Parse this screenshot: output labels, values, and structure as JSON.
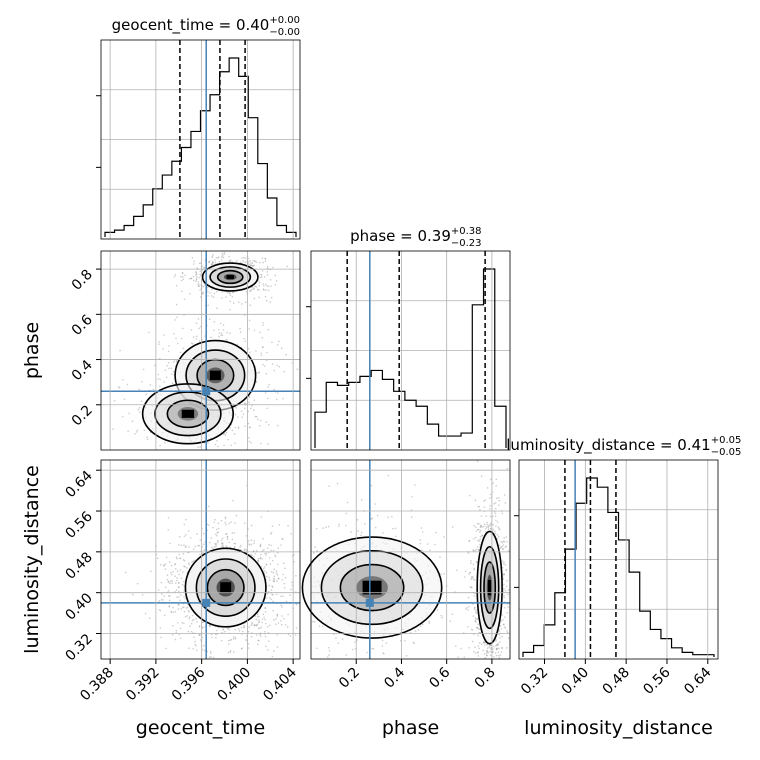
{
  "chart_data": {
    "type": "corner",
    "grid": true,
    "truth_color": "#4682b4",
    "params": [
      {
        "name": "geocent_time",
        "axis_label": "geocent_time",
        "title_main": "geocent_time = 0.40",
        "title_plus": "+0.00",
        "title_minus": "−0.00",
        "range": [
          0.3872,
          0.4046
        ],
        "ticks": [
          "0.388",
          "0.392",
          "0.396",
          "0.400",
          "0.404"
        ],
        "tick_values": [
          0.388,
          0.392,
          0.396,
          0.4,
          0.404
        ],
        "truth": 0.3964,
        "quantiles": [
          0.3941,
          0.3976,
          0.3998
        ],
        "hist_counts": [
          2,
          3,
          5,
          9,
          14,
          21,
          27,
          33,
          39,
          46,
          55,
          62,
          72,
          78,
          70,
          52,
          32,
          17,
          5,
          2
        ]
      },
      {
        "name": "phase",
        "axis_label": "phase",
        "title_main": "phase = 0.39",
        "title_plus": "+0.38",
        "title_minus": "−0.23",
        "range": [
          0.0,
          0.88
        ],
        "ticks": [
          "0.2",
          "0.4",
          "0.6",
          "0.8"
        ],
        "tick_values": [
          0.2,
          0.4,
          0.6,
          0.8
        ],
        "truth": 0.26,
        "quantiles": [
          0.16,
          0.39,
          0.77
        ],
        "hist_counts": [
          12,
          22,
          21,
          22,
          24,
          26,
          23,
          19,
          16,
          14,
          8,
          4,
          4,
          5,
          48,
          60,
          14
        ]
      },
      {
        "name": "luminosity_distance",
        "axis_label": "luminosity_distance",
        "title_main": "luminosity_distance = 0.41",
        "title_plus": "+0.05",
        "title_minus": "−0.05",
        "range": [
          0.27,
          0.66
        ],
        "ticks": [
          "0.32",
          "0.40",
          "0.48",
          "0.56",
          "0.64"
        ],
        "tick_values": [
          0.32,
          0.4,
          0.48,
          0.56,
          0.64
        ],
        "truth": 0.38,
        "quantiles": [
          0.36,
          0.41,
          0.46
        ],
        "hist_counts": [
          2,
          5,
          14,
          28,
          47,
          67,
          78,
          74,
          63,
          51,
          37,
          20,
          12,
          8,
          4,
          2,
          1,
          1
        ]
      }
    ],
    "pairs": [
      {
        "x": "geocent_time",
        "y": "phase",
        "marginal_truth": [
          0.3964,
          0.26
        ],
        "density_modes": [
          {
            "cx": 0.3985,
            "cy": 0.765,
            "sx": 0.0011,
            "sy": 0.028,
            "w": 1.0
          },
          {
            "cx": 0.3972,
            "cy": 0.33,
            "sx": 0.0016,
            "sy": 0.07,
            "w": 0.8
          },
          {
            "cx": 0.3948,
            "cy": 0.16,
            "sx": 0.0018,
            "sy": 0.06,
            "w": 0.5
          }
        ]
      },
      {
        "x": "geocent_time",
        "y": "luminosity_distance",
        "marginal_truth": [
          0.3964,
          0.38
        ],
        "density_modes": [
          {
            "cx": 0.3981,
            "cy": 0.41,
            "sx": 0.0016,
            "sy": 0.035,
            "w": 1.0
          }
        ]
      },
      {
        "x": "phase",
        "y": "luminosity_distance",
        "marginal_truth": [
          0.26,
          0.38
        ],
        "density_modes": [
          {
            "cx": 0.79,
            "cy": 0.41,
            "sx": 0.025,
            "sy": 0.05,
            "w": 1.0
          },
          {
            "cx": 0.27,
            "cy": 0.41,
            "sx": 0.14,
            "sy": 0.045,
            "w": 0.55
          }
        ]
      }
    ]
  }
}
